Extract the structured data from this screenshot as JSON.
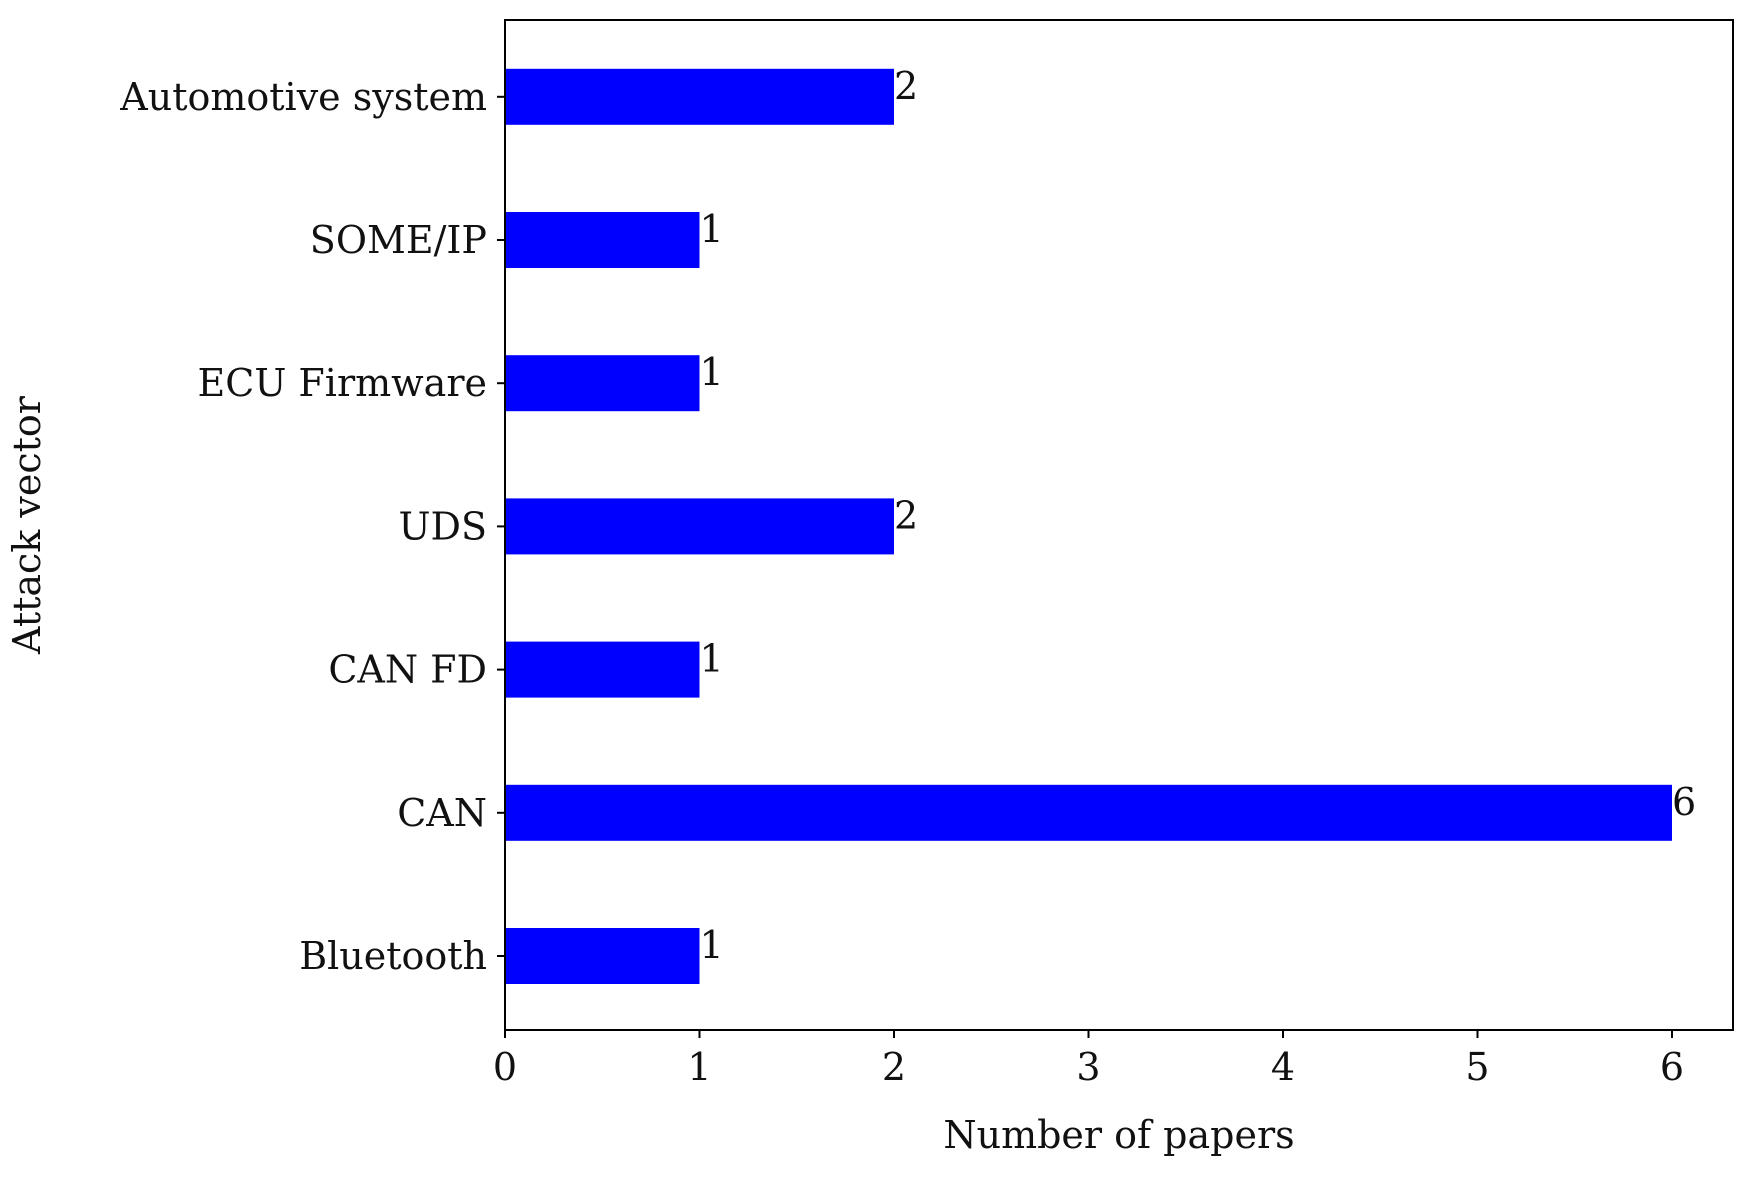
{
  "chart_data": {
    "type": "bar",
    "orientation": "horizontal",
    "categories": [
      "Bluetooth",
      "CAN",
      "CAN FD",
      "UDS",
      "ECU Firmware",
      "SOME/IP",
      "Automotive system"
    ],
    "values": [
      1,
      6,
      1,
      2,
      1,
      1,
      2
    ],
    "data_labels": [
      "1",
      "6",
      "1",
      "2",
      "1",
      "1",
      "2"
    ],
    "xlabel": "Number of papers",
    "ylabel": "Attack vector",
    "xlim": [
      0,
      6.3
    ],
    "xticks": [
      "0",
      "1",
      "2",
      "3",
      "4",
      "5",
      "6"
    ],
    "bar_color": "#0000ff",
    "grid": false
  }
}
